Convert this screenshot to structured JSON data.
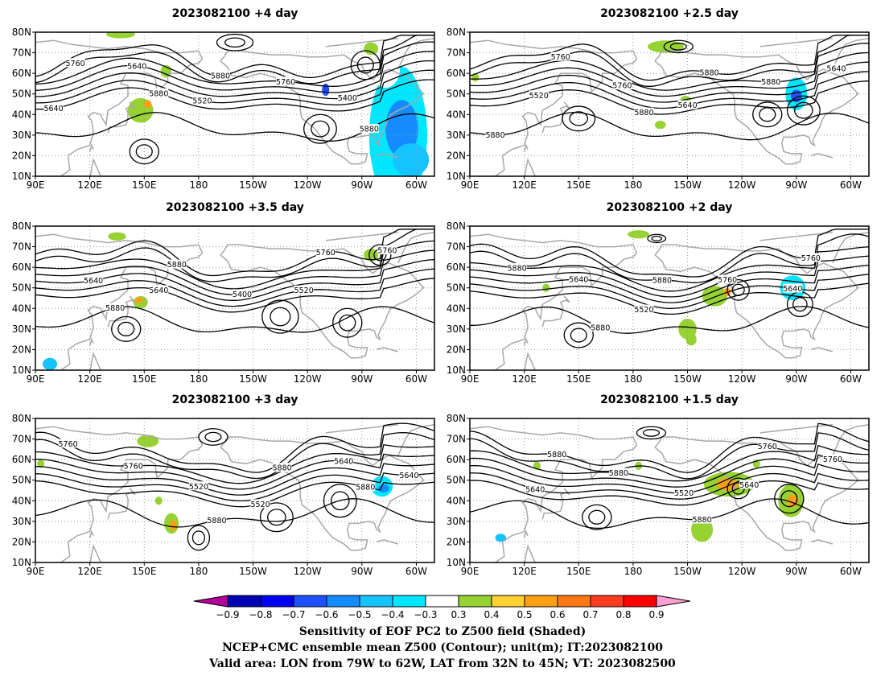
{
  "panels": [
    {
      "title": "2023082100 +4 day",
      "contour_labels": [
        "5640",
        "5520",
        "5400",
        "5640",
        "5760",
        "5760",
        "5880",
        "5880",
        "5880"
      ],
      "shading": [
        {
          "lon": 290,
          "lat": 30,
          "rx": 16,
          "ry": 34,
          "v": -0.4
        },
        {
          "lon": 292,
          "lat": 33,
          "rx": 9,
          "ry": 14,
          "v": -0.6
        },
        {
          "lon": 297,
          "lat": 18,
          "rx": 10,
          "ry": 8,
          "v": -0.5
        },
        {
          "lon": 283,
          "lat": 62,
          "rx": 8,
          "ry": 9,
          "v": -0.3
        },
        {
          "lon": 226,
          "lat": 58,
          "rx": 6,
          "ry": 6,
          "v": -0.3
        },
        {
          "lon": 249,
          "lat": 55,
          "rx": 6,
          "ry": 8,
          "v": -0.3
        },
        {
          "lon": 250,
          "lat": 52,
          "rx": 2,
          "ry": 3,
          "v": -0.7
        },
        {
          "lon": 95,
          "lat": 15,
          "rx": 6,
          "ry": 5,
          "v": -0.3
        },
        {
          "lon": 148,
          "lat": 42,
          "rx": 7,
          "ry": 6,
          "v": 0.3
        },
        {
          "lon": 152,
          "lat": 45,
          "rx": 2,
          "ry": 2,
          "v": 0.5
        },
        {
          "lon": 137,
          "lat": 79,
          "rx": 8,
          "ry": 2,
          "v": 0.3
        },
        {
          "lon": 162,
          "lat": 61,
          "rx": 3,
          "ry": 3,
          "v": 0.3
        },
        {
          "lon": 275,
          "lat": 72,
          "rx": 4,
          "ry": 3,
          "v": 0.3
        },
        {
          "lon": 294,
          "lat": 67,
          "rx": 6,
          "ry": 4,
          "v": -0.3
        }
      ]
    },
    {
      "title": "2023082100 +2.5 day",
      "contour_labels": [
        "5520",
        "5640",
        "5640",
        "5760",
        "5880",
        "5760",
        "5880",
        "5880",
        "5880"
      ],
      "shading": [
        {
          "lon": 270,
          "lat": 50,
          "rx": 6,
          "ry": 8,
          "v": -0.4
        },
        {
          "lon": 270,
          "lat": 49,
          "rx": 3,
          "ry": 3,
          "v": -0.7
        },
        {
          "lon": 98,
          "lat": 14,
          "rx": 10,
          "ry": 8,
          "v": -0.3
        },
        {
          "lon": 210,
          "lat": 66,
          "rx": 9,
          "ry": 5,
          "v": -0.3
        },
        {
          "lon": 198,
          "lat": 73,
          "rx": 10,
          "ry": 3,
          "v": 0.3
        },
        {
          "lon": 140,
          "lat": 46,
          "rx": 3,
          "ry": 3,
          "v": -0.3
        },
        {
          "lon": 195,
          "lat": 35,
          "rx": 3,
          "ry": 2,
          "v": 0.3
        },
        {
          "lon": 209,
          "lat": 47,
          "rx": 3,
          "ry": 2,
          "v": 0.3
        },
        {
          "lon": 245,
          "lat": 51,
          "rx": 2,
          "ry": 2,
          "v": -0.3
        },
        {
          "lon": 93,
          "lat": 58,
          "rx": 2,
          "ry": 2,
          "v": 0.3
        }
      ]
    },
    {
      "title": "2023082100 +3.5 day",
      "contour_labels": [
        "5640",
        "5520",
        "5640",
        "5400",
        "5760",
        "5880",
        "5760",
        "5880"
      ],
      "shading": [
        {
          "lon": 280,
          "lat": 37,
          "rx": 8,
          "ry": 22,
          "v": -0.3
        },
        {
          "lon": 99,
          "lat": 14,
          "rx": 9,
          "ry": 9,
          "v": -0.3
        },
        {
          "lon": 98,
          "lat": 13,
          "rx": 4,
          "ry": 3,
          "v": -0.5
        },
        {
          "lon": 228,
          "lat": 70,
          "rx": 10,
          "ry": 4,
          "v": -0.3
        },
        {
          "lon": 275,
          "lat": 66,
          "rx": 4,
          "ry": 3,
          "v": 0.3
        },
        {
          "lon": 148,
          "lat": 43,
          "rx": 4,
          "ry": 3,
          "v": 0.3
        },
        {
          "lon": 147,
          "lat": 44,
          "rx": 2,
          "ry": 1.5,
          "v": 0.5
        },
        {
          "lon": 295,
          "lat": 62,
          "rx": 4,
          "ry": 3,
          "v": -0.3
        },
        {
          "lon": 135,
          "lat": 75,
          "rx": 5,
          "ry": 2,
          "v": 0.3
        },
        {
          "lon": 194,
          "lat": 52,
          "rx": 2,
          "ry": 2,
          "v": -0.3
        },
        {
          "lon": 249,
          "lat": 54,
          "rx": 2,
          "ry": 2,
          "v": -0.3
        },
        {
          "lon": 303,
          "lat": 53,
          "rx": 2,
          "ry": 4,
          "v": -0.3
        }
      ]
    },
    {
      "title": "2023082100 +2 day",
      "contour_labels": [
        "5520",
        "5640",
        "5640",
        "5760",
        "5880",
        "5880",
        "5760",
        "5880"
      ],
      "shading": [
        {
          "lon": 268,
          "lat": 50,
          "rx": 7,
          "ry": 6,
          "v": -0.4
        },
        {
          "lon": 268,
          "lat": 50,
          "rx": 3,
          "ry": 2,
          "v": -0.7
        },
        {
          "lon": 100,
          "lat": 15,
          "rx": 10,
          "ry": 7,
          "v": -0.3
        },
        {
          "lon": 225,
          "lat": 46,
          "rx": 7,
          "ry": 5,
          "v": 0.3
        },
        {
          "lon": 232,
          "lat": 48,
          "rx": 2,
          "ry": 2,
          "v": 0.5
        },
        {
          "lon": 210,
          "lat": 30,
          "rx": 5,
          "ry": 5,
          "v": 0.3
        },
        {
          "lon": 212,
          "lat": 25,
          "rx": 3,
          "ry": 3,
          "v": 0.3
        },
        {
          "lon": 183,
          "lat": 76,
          "rx": 6,
          "ry": 2,
          "v": 0.3
        },
        {
          "lon": 132,
          "lat": 50,
          "rx": 2,
          "ry": 2,
          "v": 0.3
        },
        {
          "lon": 148,
          "lat": 22,
          "rx": 3,
          "ry": 2,
          "v": -0.3
        },
        {
          "lon": 200,
          "lat": 35,
          "rx": 2,
          "ry": 2,
          "v": -0.3
        },
        {
          "lon": 252,
          "lat": 70,
          "rx": 6,
          "ry": 3,
          "v": -0.3
        }
      ]
    },
    {
      "title": "2023082100 +3 day",
      "contour_labels": [
        "5520",
        "5640",
        "5520",
        "5640",
        "5760",
        "5880",
        "5760",
        "5880",
        "5880"
      ],
      "shading": [
        {
          "lon": 281,
          "lat": 47,
          "rx": 6,
          "ry": 5,
          "v": -0.4
        },
        {
          "lon": 282,
          "lat": 46,
          "rx": 3,
          "ry": 2,
          "v": -0.6
        },
        {
          "lon": 99,
          "lat": 16,
          "rx": 9,
          "ry": 7,
          "v": -0.3
        },
        {
          "lon": 295,
          "lat": 17,
          "rx": 7,
          "ry": 7,
          "v": -0.3
        },
        {
          "lon": 255,
          "lat": 55,
          "rx": 3,
          "ry": 3,
          "v": -0.3
        },
        {
          "lon": 223,
          "lat": 67,
          "rx": 10,
          "ry": 3,
          "v": -0.3
        },
        {
          "lon": 165,
          "lat": 29,
          "rx": 4,
          "ry": 5,
          "v": 0.3
        },
        {
          "lon": 166,
          "lat": 28,
          "rx": 2,
          "ry": 2.5,
          "v": 0.5
        },
        {
          "lon": 152,
          "lat": 69,
          "rx": 6,
          "ry": 3,
          "v": 0.3
        },
        {
          "lon": 93,
          "lat": 58,
          "rx": 2,
          "ry": 2,
          "v": 0.3
        },
        {
          "lon": 158,
          "lat": 40,
          "rx": 2,
          "ry": 2,
          "v": 0.3
        }
      ]
    },
    {
      "title": "2023082100 +1.5 day",
      "contour_labels": [
        "5640",
        "5640",
        "5520",
        "5760",
        "5880",
        "5760",
        "5880",
        "5880"
      ],
      "shading": [
        {
          "lon": 233,
          "lat": 48,
          "rx": 14,
          "ry": 6,
          "v": 0.3
        },
        {
          "lon": 232,
          "lat": 48,
          "rx": 6,
          "ry": 3,
          "v": 0.5
        },
        {
          "lon": 267,
          "lat": 40,
          "rx": 7,
          "ry": 8,
          "v": 0.3
        },
        {
          "lon": 268,
          "lat": 40,
          "rx": 3,
          "ry": 3,
          "v": 0.5
        },
        {
          "lon": 218,
          "lat": 26,
          "rx": 6,
          "ry": 6,
          "v": 0.3
        },
        {
          "lon": 108,
          "lat": 20,
          "rx": 9,
          "ry": 7,
          "v": -0.3
        },
        {
          "lon": 107,
          "lat": 22,
          "rx": 3,
          "ry": 2,
          "v": -0.5
        },
        {
          "lon": 262,
          "lat": 50,
          "rx": 3,
          "ry": 3,
          "v": -0.3
        },
        {
          "lon": 183,
          "lat": 57,
          "rx": 2,
          "ry": 2,
          "v": 0.3
        },
        {
          "lon": 127,
          "lat": 57,
          "rx": 2,
          "ry": 2,
          "v": 0.3
        },
        {
          "lon": 248,
          "lat": 58,
          "rx": 2,
          "ry": 2,
          "v": 0.3
        },
        {
          "lon": 173,
          "lat": 62,
          "rx": 3,
          "ry": 2,
          "v": -0.3
        }
      ]
    }
  ],
  "axes": {
    "lat_ticks": [
      "80N",
      "70N",
      "60N",
      "50N",
      "40N",
      "30N",
      "20N",
      "10N"
    ],
    "lon_ticks": [
      "90E",
      "120E",
      "150E",
      "180",
      "150W",
      "120W",
      "90W",
      "60W"
    ]
  },
  "colorbar": {
    "ticks": [
      "−0.9",
      "−0.8",
      "−0.7",
      "−0.6",
      "−0.5",
      "−0.4",
      "−0.3",
      "0.3",
      "0.4",
      "0.5",
      "0.6",
      "0.7",
      "0.8",
      "0.9"
    ],
    "colors": [
      "#b4009b",
      "#0000b4",
      "#0000f0",
      "#1e50ff",
      "#148cff",
      "#14c3ff",
      "#00e6ff",
      "#ffffff",
      "#96d232",
      "#ffd232",
      "#ffa014",
      "#ff7814",
      "#ff3c1e",
      "#ff0000",
      "#ffa0d2"
    ]
  },
  "footer": {
    "line1": "Sensitivity of EOF PC2 to Z500 field (Shaded)",
    "line2": "NCEP+CMC ensemble mean Z500 (Contour); unit(m); IT:2023082100",
    "line3": "Valid area: LON from 79W to 62W, LAT from 32N to 45N; VT: 2023082500"
  }
}
